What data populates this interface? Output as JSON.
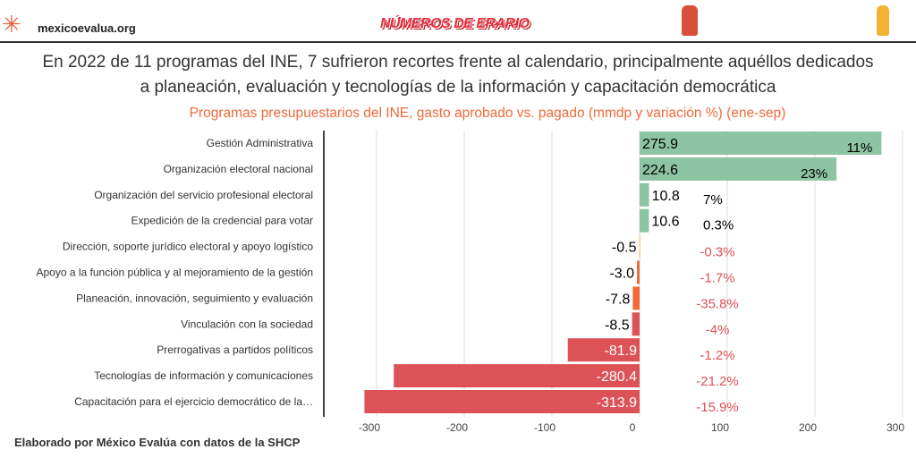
{
  "header": {
    "site": "mexicoevalua.org",
    "brand": "NÚMEROS DE ERARIO",
    "logo_icon": "asterisk-logo-icon"
  },
  "title_line1": "En 2022 de 11 programas del INE, 7 sufrieron recortes frente al calendario, principalmente aquéllos dedicados",
  "title_line2": "a planeación, evaluación y tecnologías de la información y capacitación democrática",
  "footer": "Elaborado por México Evalúa con datos de la SHCP",
  "chart_data": {
    "type": "bar",
    "orientation": "horizontal",
    "title": "Programas presupuestarios del INE, gasto aprobado vs. pagado (mmdp y variación %) (ene-sep)",
    "categories": [
      "Gestión Administrativa",
      "Organización electoral nacional",
      "Organización del servicio profesional electoral",
      "Expedición de la credencial para votar",
      "Dirección, soporte jurídico electoral y apoyo logístico",
      "Apoyo a la función pública y al mejoramiento de la gestión",
      "Planeación, innovación, seguimiento y evaluación",
      "Vinculación con la sociedad",
      "Prerrogativas a partidos políticos",
      "Tecnologías de información y comunicaciones",
      "Capacitación para el ejercicio democrático de la…"
    ],
    "values": [
      275.9,
      224.6,
      10.8,
      10.6,
      -0.5,
      -3.0,
      -7.8,
      -8.5,
      -81.9,
      -280.4,
      -313.9
    ],
    "value_labels": [
      "275.9",
      "224.6",
      "10.8",
      "10.6",
      "-0.5",
      "-3.0",
      "-7.8",
      "-8.5",
      "-81.9",
      "-280.4",
      "-313.9"
    ],
    "pct_labels": [
      "11%",
      "23%",
      "7%",
      "0.3%",
      "-0.3%",
      "-1.7%",
      "-35.8%",
      "-4%",
      "-1.2%",
      "-21.2%",
      "-15.9%"
    ],
    "bar_colors": [
      "#8cc4a4",
      "#8cc4a4",
      "#8cc4a4",
      "#8cc4a4",
      "#f5d08a",
      "#f06a3a",
      "#f06a3a",
      "#dc5256",
      "#dc5256",
      "#dc5256",
      "#dc5256"
    ],
    "xticks": [
      -300,
      -200,
      -100,
      0,
      100,
      200,
      300
    ],
    "xlim": [
      -320,
      310
    ],
    "grid": true,
    "negative_pct_color": "#dc5256"
  }
}
